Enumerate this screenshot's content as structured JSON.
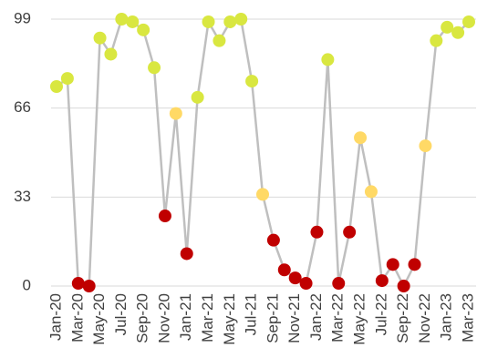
{
  "chart_data": {
    "type": "line",
    "title": "",
    "xlabel": "",
    "ylabel": "",
    "ylim": [
      0,
      99
    ],
    "y_ticks": [
      0,
      33,
      66,
      99
    ],
    "grid": "horizontal",
    "x_tick_labels": [
      "Jan-20",
      "Mar-20",
      "May-20",
      "Jul-20",
      "Sep-20",
      "Nov-20",
      "Jan-21",
      "Mar-21",
      "May-21",
      "Jul-21",
      "Sep-21",
      "Nov-21",
      "Jan-22",
      "Mar-22",
      "May-22",
      "Jul-22",
      "Sep-22",
      "Nov-22",
      "Jan-23",
      "Mar-23"
    ],
    "x": [
      "Jan-20",
      "Feb-20",
      "Mar-20",
      "Apr-20",
      "May-20",
      "Jun-20",
      "Jul-20",
      "Aug-20",
      "Sep-20",
      "Oct-20",
      "Nov-20",
      "Dec-20",
      "Jan-21",
      "Feb-21",
      "Mar-21",
      "Apr-21",
      "May-21",
      "Jun-21",
      "Jul-21",
      "Aug-21",
      "Sep-21",
      "Oct-21",
      "Nov-21",
      "Dec-21",
      "Jan-22",
      "Feb-22",
      "Mar-22",
      "Apr-22",
      "May-22",
      "Jun-22",
      "Jul-22",
      "Aug-22",
      "Sep-22",
      "Oct-22",
      "Nov-22",
      "Dec-22",
      "Jan-23",
      "Feb-23",
      "Mar-23"
    ],
    "series": [
      {
        "values": [
          74,
          77,
          1,
          0,
          92,
          86,
          99,
          98,
          95,
          81,
          26,
          64,
          12,
          70,
          98,
          91,
          98,
          99,
          76,
          34,
          17,
          6,
          3,
          1,
          20,
          84,
          1,
          20,
          55,
          35,
          2,
          8,
          0,
          8,
          52,
          91,
          96,
          94,
          98
        ],
        "point_colors": [
          "#d9e740",
          "#d9e740",
          "#c00000",
          "#c00000",
          "#d9e740",
          "#d9e740",
          "#d9e740",
          "#d9e740",
          "#d9e740",
          "#d9e740",
          "#c00000",
          "#ffd966",
          "#c00000",
          "#d9e740",
          "#d9e740",
          "#d9e740",
          "#d9e740",
          "#d9e740",
          "#d9e740",
          "#ffd966",
          "#c00000",
          "#c00000",
          "#c00000",
          "#c00000",
          "#c00000",
          "#d9e740",
          "#c00000",
          "#c00000",
          "#ffd966",
          "#ffd966",
          "#c00000",
          "#c00000",
          "#c00000",
          "#c00000",
          "#ffd966",
          "#d9e740",
          "#d9e740",
          "#d9e740",
          "#d9e740"
        ]
      }
    ],
    "colors": {
      "line": "#bfbfbf",
      "high": "#d9e740",
      "mid": "#ffd966",
      "low": "#c00000",
      "grid": "#d9d9d9",
      "text": "#404040"
    }
  }
}
